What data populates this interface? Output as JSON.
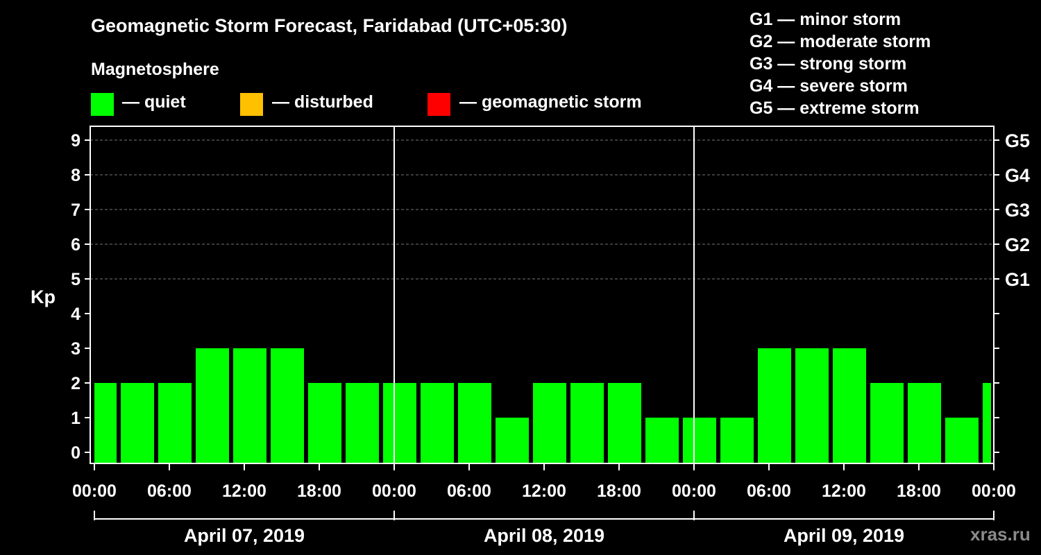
{
  "title": "Geomagnetic Storm Forecast, Faridabad (UTC+05:30)",
  "legend": {
    "heading": "Magnetosphere",
    "items": [
      {
        "label": "— quiet",
        "color": "#00ff00"
      },
      {
        "label": "— disturbed",
        "color": "#ffc000"
      },
      {
        "label": "— geomagnetic storm",
        "color": "#ff0000"
      }
    ]
  },
  "storm_scale": [
    "G1 — minor storm",
    "G2 — moderate storm",
    "G3 — strong storm",
    "G4 — severe storm",
    "G5 — extreme storm"
  ],
  "watermark": "xras.ru",
  "chart_data": {
    "type": "bar",
    "ylabel": "Kp",
    "ylim": [
      0,
      9
    ],
    "y_ticks": [
      0,
      1,
      2,
      3,
      4,
      5,
      6,
      7,
      8,
      9
    ],
    "right_ticks": [
      {
        "value": 5,
        "label": "G1"
      },
      {
        "value": 6,
        "label": "G2"
      },
      {
        "value": 7,
        "label": "G3"
      },
      {
        "value": 8,
        "label": "G4"
      },
      {
        "value": 9,
        "label": "G5"
      }
    ],
    "grid": "dashed horizontal at Kp 5-9",
    "x_tick_labels": [
      "00:00",
      "06:00",
      "12:00",
      "18:00",
      "00:00",
      "06:00",
      "12:00",
      "18:00",
      "00:00",
      "06:00",
      "12:00",
      "18:00",
      "00:00"
    ],
    "dates": [
      "April 07, 2019",
      "April 08, 2019",
      "April 09, 2019"
    ],
    "bar_color": "#00ff00",
    "bars": [
      {
        "start": "April 07, 2019 00:00",
        "kp": 2
      },
      {
        "start": "April 07, 2019 02:00",
        "kp": 2
      },
      {
        "start": "April 07, 2019 05:00",
        "kp": 2
      },
      {
        "start": "April 07, 2019 08:00",
        "kp": 3
      },
      {
        "start": "April 07, 2019 11:00",
        "kp": 3
      },
      {
        "start": "April 07, 2019 14:00",
        "kp": 3
      },
      {
        "start": "April 07, 2019 17:00",
        "kp": 2
      },
      {
        "start": "April 07, 2019 20:00",
        "kp": 2
      },
      {
        "start": "April 07, 2019 23:00",
        "kp": 2
      },
      {
        "start": "April 08, 2019 02:00",
        "kp": 2
      },
      {
        "start": "April 08, 2019 05:00",
        "kp": 2
      },
      {
        "start": "April 08, 2019 08:00",
        "kp": 1
      },
      {
        "start": "April 08, 2019 11:00",
        "kp": 2
      },
      {
        "start": "April 08, 2019 14:00",
        "kp": 2
      },
      {
        "start": "April 08, 2019 17:00",
        "kp": 2
      },
      {
        "start": "April 08, 2019 20:00",
        "kp": 1
      },
      {
        "start": "April 08, 2019 23:00",
        "kp": 1
      },
      {
        "start": "April 09, 2019 02:00",
        "kp": 1
      },
      {
        "start": "April 09, 2019 05:00",
        "kp": 3
      },
      {
        "start": "April 09, 2019 08:00",
        "kp": 3
      },
      {
        "start": "April 09, 2019 11:00",
        "kp": 3
      },
      {
        "start": "April 09, 2019 14:00",
        "kp": 2
      },
      {
        "start": "April 09, 2019 17:00",
        "kp": 2
      },
      {
        "start": "April 09, 2019 20:00",
        "kp": 1
      },
      {
        "start": "April 09, 2019 23:00",
        "kp": 2
      }
    ]
  }
}
